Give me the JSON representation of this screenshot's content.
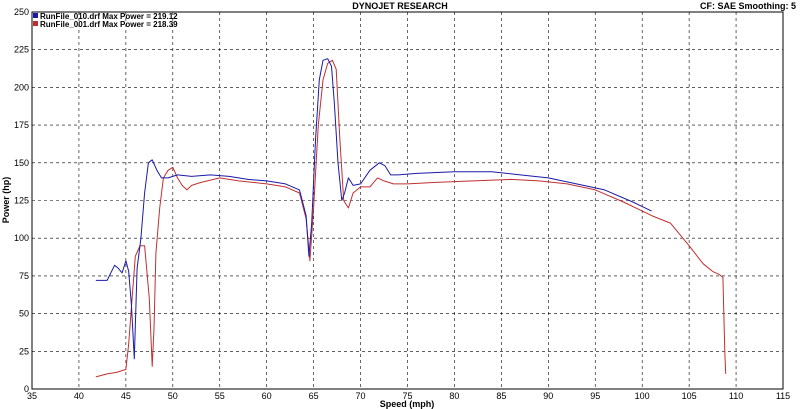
{
  "header": {
    "title": "DYNOJET RESEARCH",
    "cf_label": "CF: SAE  Smoothing: 5"
  },
  "colors": {
    "run010": "#1a1aa8",
    "run001": "#c03030",
    "grid": "#000000",
    "background": "#ffffff"
  },
  "chart_data": {
    "type": "line",
    "title": "DYNOJET RESEARCH",
    "xlabel": "Speed (mph)",
    "ylabel": "Power (hp)",
    "xlim": [
      35,
      115
    ],
    "ylim": [
      0,
      250
    ],
    "xticks": [
      35,
      40,
      45,
      50,
      55,
      60,
      65,
      70,
      75,
      80,
      85,
      90,
      95,
      100,
      105,
      110,
      115
    ],
    "yticks": [
      0,
      25,
      50,
      75,
      100,
      125,
      150,
      175,
      200,
      225,
      250
    ],
    "grid": true,
    "legend_position": "top-left",
    "series": [
      {
        "name": "RunFile_010.drf Max Power = 219.12",
        "color": "#1a1aa8",
        "x": [
          41.8,
          43.0,
          43.8,
          44.2,
          44.6,
          45.0,
          45.3,
          45.6,
          45.9,
          46.2,
          46.6,
          47.0,
          47.4,
          47.8,
          48.3,
          48.8,
          49.5,
          50.5,
          52.0,
          54.0,
          56.0,
          58.0,
          60.0,
          62.0,
          63.5,
          64.2,
          64.5,
          64.8,
          65.2,
          65.6,
          66.0,
          66.5,
          66.9,
          67.2,
          67.6,
          68.0,
          68.3,
          68.7,
          69.2,
          70.0,
          71.0,
          72.0,
          72.6,
          73.2,
          74.0,
          76.0,
          80.0,
          84.0,
          87.0,
          90.0,
          93.0,
          96.0,
          99.0,
          101.0
        ],
        "values": [
          72,
          72,
          82,
          80,
          77,
          85,
          78,
          55,
          20,
          80,
          100,
          130,
          150,
          152,
          145,
          140,
          140,
          142,
          141,
          142,
          141,
          139,
          138,
          136,
          132,
          115,
          88,
          110,
          165,
          205,
          218,
          219,
          214,
          190,
          150,
          125,
          130,
          140,
          135,
          136,
          145,
          150,
          148,
          142,
          142,
          143,
          144,
          144,
          142,
          140,
          136,
          132,
          124,
          118
        ]
      },
      {
        "name": "RunFile_001.drf Max Power = 218.39",
        "color": "#c03030",
        "x": [
          41.8,
          43.0,
          44.0,
          45.0,
          45.3,
          45.6,
          46.0,
          46.5,
          47.0,
          47.5,
          47.8,
          48.0,
          48.2,
          48.6,
          49.0,
          49.5,
          50.0,
          50.5,
          51.0,
          51.5,
          52.0,
          53.0,
          55.0,
          57.0,
          60.0,
          62.0,
          63.5,
          64.2,
          64.6,
          65.0,
          65.5,
          66.0,
          66.5,
          67.0,
          67.4,
          67.8,
          68.2,
          68.7,
          69.2,
          70.0,
          71.0,
          71.8,
          72.5,
          73.5,
          75.0,
          78.0,
          82.0,
          86.0,
          89.0,
          92.0,
          95.0,
          98.0,
          101.0,
          103.0,
          105.0,
          106.5,
          107.5,
          108.2,
          108.6,
          108.8,
          108.9
        ],
        "values": [
          8,
          10,
          11,
          13,
          30,
          55,
          88,
          95,
          95,
          60,
          15,
          40,
          90,
          120,
          140,
          145,
          147,
          140,
          135,
          132,
          135,
          137,
          140,
          138,
          136,
          134,
          130,
          113,
          85,
          120,
          175,
          205,
          216,
          218,
          212,
          165,
          125,
          120,
          130,
          134,
          134,
          140,
          138,
          136,
          136,
          137,
          138,
          139,
          138,
          136,
          132,
          124,
          115,
          110,
          95,
          83,
          78,
          76,
          74,
          25,
          10
        ]
      }
    ]
  }
}
